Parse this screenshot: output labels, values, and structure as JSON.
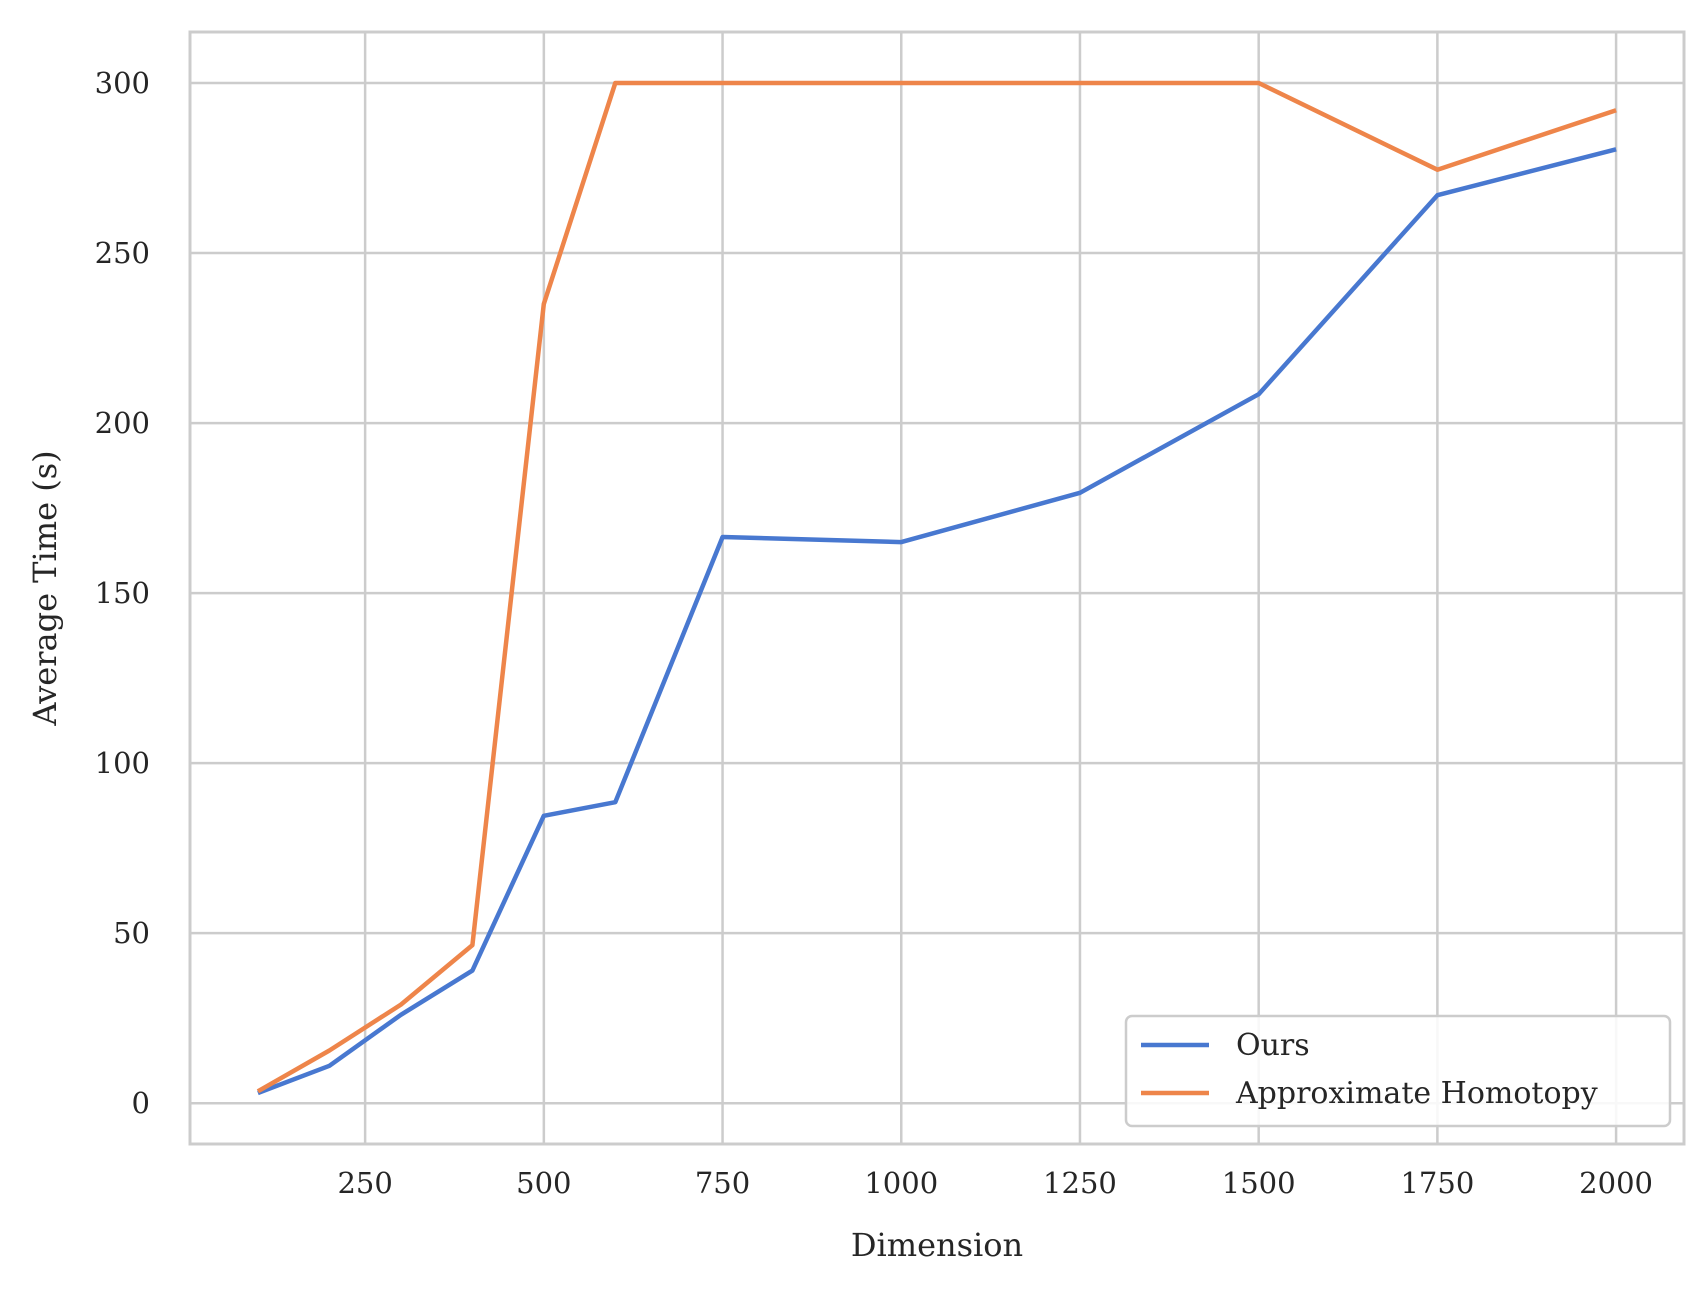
{
  "chart_data": {
    "type": "line",
    "title": "",
    "xlabel": "Dimension",
    "ylabel": "Average Time (s)",
    "xlim": [
      5,
      2095
    ],
    "ylim": [
      -12,
      315
    ],
    "xticks": [
      250,
      500,
      750,
      1000,
      1250,
      1500,
      1750,
      2000
    ],
    "yticks": [
      0,
      50,
      100,
      150,
      200,
      250,
      300
    ],
    "grid": true,
    "legend_position": "lower-right",
    "x": [
      100,
      200,
      300,
      400,
      500,
      600,
      750,
      1000,
      1250,
      1500,
      1750,
      2000
    ],
    "series": [
      {
        "name": "Ours",
        "color": "#4878d0",
        "values": [
          3,
          11,
          26,
          39,
          84.5,
          88.5,
          166.5,
          165,
          179.5,
          208.5,
          267,
          280.5
        ]
      },
      {
        "name": "Approximate Homotopy",
        "color": "#ee854a",
        "values": [
          3.5,
          15.5,
          29,
          46.5,
          235,
          300,
          300,
          300,
          300,
          300,
          274.5,
          292
        ]
      }
    ]
  }
}
